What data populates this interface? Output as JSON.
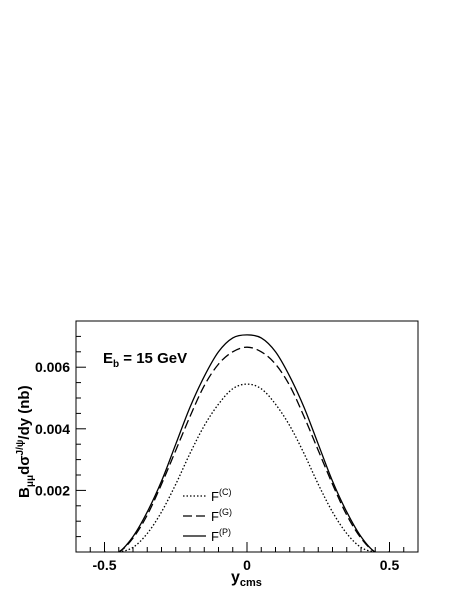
{
  "chart_data": {
    "type": "line",
    "title": "",
    "annotation": {
      "main": "E",
      "sub": "b",
      "rest": " = 15 GeV"
    },
    "xlabel": {
      "main": "y",
      "sub": "cms"
    },
    "ylabel": {
      "p1": "B",
      "sub1": "μμ",
      "p2": "dσ",
      "sup": "J/ψ",
      "p3": "/dy (nb)"
    },
    "xlim": [
      -0.6,
      0.6
    ],
    "ylim": [
      0,
      0.0075
    ],
    "x_ticks": [
      -0.5,
      0.0,
      0.5
    ],
    "x_tick_labels": [
      "-0.5",
      "0",
      "0.5"
    ],
    "y_ticks": [
      0.002,
      0.004,
      0.006
    ],
    "y_tick_labels": [
      "0.002",
      "0.004",
      "0.006"
    ],
    "grid": false,
    "legend_position": "bottom-left",
    "x": [
      -0.5,
      -0.45,
      -0.4,
      -0.35,
      -0.3,
      -0.25,
      -0.2,
      -0.15,
      -0.1,
      -0.05,
      0.0,
      0.05,
      0.1,
      0.15,
      0.2,
      0.25,
      0.3,
      0.35,
      0.4,
      0.45,
      0.5
    ],
    "series": [
      {
        "name": "F",
        "name_sup": "(C)",
        "style": "dotted",
        "values": [
          0.0,
          0.0,
          0.00015,
          0.0006,
          0.0013,
          0.0022,
          0.0032,
          0.0041,
          0.0048,
          0.0053,
          0.00545,
          0.0053,
          0.0048,
          0.0041,
          0.0032,
          0.0022,
          0.0013,
          0.0006,
          0.00015,
          0.0,
          0.0
        ]
      },
      {
        "name": "F",
        "name_sup": "(G)",
        "style": "dashed",
        "values": [
          0.0,
          0.0,
          0.00045,
          0.0012,
          0.0022,
          0.0033,
          0.0044,
          0.0054,
          0.0061,
          0.0065,
          0.00665,
          0.0065,
          0.0061,
          0.0054,
          0.0044,
          0.0033,
          0.0022,
          0.0012,
          0.00045,
          0.0,
          0.0
        ]
      },
      {
        "name": "F",
        "name_sup": "(P)",
        "style": "solid",
        "values": [
          0.0,
          0.0,
          0.0005,
          0.0013,
          0.0023,
          0.0035,
          0.0047,
          0.0057,
          0.0065,
          0.00695,
          0.00705,
          0.00695,
          0.0065,
          0.0057,
          0.0047,
          0.0035,
          0.0023,
          0.0013,
          0.0005,
          0.0,
          0.0
        ]
      }
    ]
  }
}
